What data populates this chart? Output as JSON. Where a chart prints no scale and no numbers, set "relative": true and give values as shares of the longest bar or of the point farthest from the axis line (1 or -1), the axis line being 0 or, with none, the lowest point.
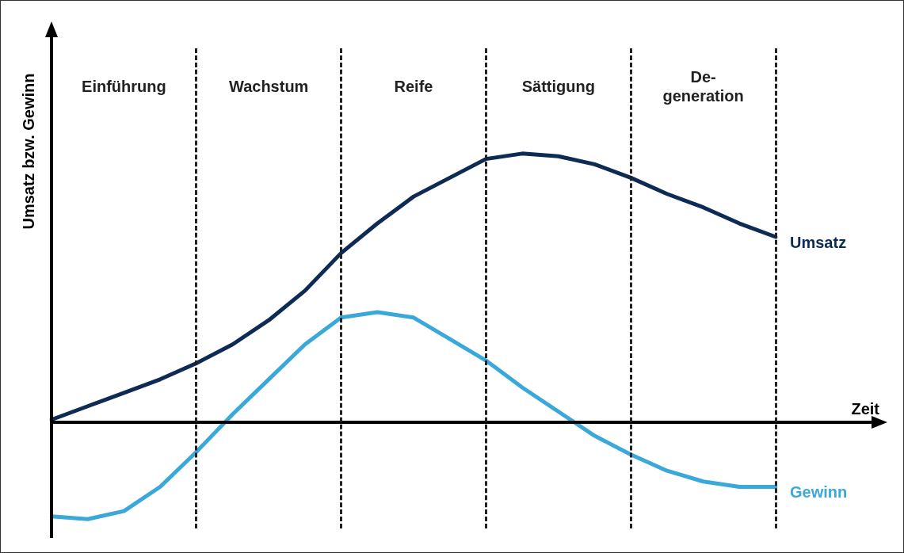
{
  "chart_data": {
    "type": "line",
    "relative": true,
    "xlabel": "Zeit",
    "ylabel": "Umsatz bzw. Gewinn",
    "categories": [
      null,
      null,
      null,
      null,
      null,
      null,
      null,
      null,
      null,
      null,
      null,
      null,
      null,
      null,
      null,
      null,
      null,
      null,
      null,
      null,
      null
    ],
    "tick_labels": false,
    "grid": "x",
    "legend": false,
    "marker": "none",
    "line_style": "solid",
    "annotations": [
      "Einführung",
      "Wachstum",
      "Reife",
      "Sättigung",
      "De-\ngeneration"
    ],
    "series": [
      {
        "name": "Umsatz",
        "color": "#0d2b55",
        "values": [
          0.01,
          0.06,
          0.11,
          0.16,
          0.22,
          0.29,
          0.38,
          0.49,
          0.63,
          0.74,
          0.84,
          0.91,
          0.98,
          1,
          0.99,
          0.96,
          0.91,
          0.85,
          0.8,
          0.74,
          0.69
        ]
      },
      {
        "name": "Gewinn",
        "color": "#3aa8d8",
        "values": [
          -0.35,
          -0.36,
          -0.33,
          -0.24,
          -0.11,
          0.03,
          0.16,
          0.29,
          0.39,
          0.41,
          0.39,
          0.31,
          0.23,
          0.13,
          0.04,
          -0.05,
          -0.12,
          -0.18,
          -0.22,
          -0.24,
          -0.24
        ]
      }
    ]
  }
}
